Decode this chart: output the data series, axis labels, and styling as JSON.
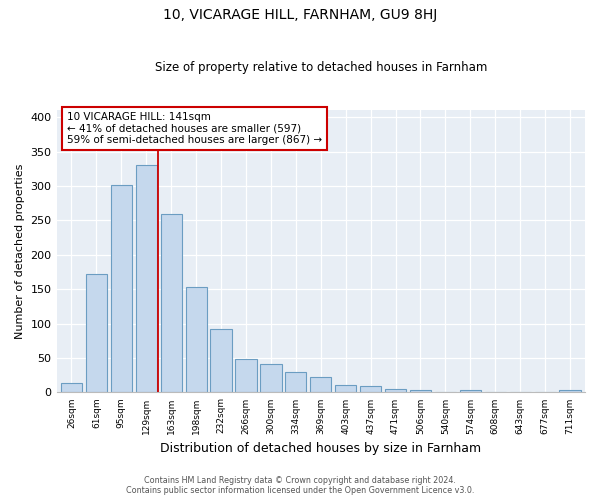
{
  "title": "10, VICARAGE HILL, FARNHAM, GU9 8HJ",
  "subtitle": "Size of property relative to detached houses in Farnham",
  "xlabel": "Distribution of detached houses by size in Farnham",
  "ylabel": "Number of detached properties",
  "bar_values": [
    13,
    172,
    302,
    330,
    259,
    153,
    92,
    49,
    42,
    29,
    22,
    11,
    10,
    5,
    4,
    1,
    4,
    1,
    0,
    0,
    4
  ],
  "tick_labels": [
    "26sqm",
    "61sqm",
    "95sqm",
    "129sqm",
    "163sqm",
    "198sqm",
    "232sqm",
    "266sqm",
    "300sqm",
    "334sqm",
    "369sqm",
    "403sqm",
    "437sqm",
    "471sqm",
    "506sqm",
    "540sqm",
    "574sqm",
    "608sqm",
    "643sqm",
    "677sqm",
    "711sqm"
  ],
  "bar_color": "#c5d8ed",
  "bar_edge_color": "#6b9dc2",
  "property_line_color": "#cc0000",
  "property_bin_index": 3,
  "annotation_text": "10 VICARAGE HILL: 141sqm\n← 41% of detached houses are smaller (597)\n59% of semi-detached houses are larger (867) →",
  "annotation_box_color": "white",
  "annotation_box_edge_color": "#cc0000",
  "ylim": [
    0,
    410
  ],
  "yticks": [
    0,
    50,
    100,
    150,
    200,
    250,
    300,
    350,
    400
  ],
  "footer_line1": "Contains HM Land Registry data © Crown copyright and database right 2024.",
  "footer_line2": "Contains public sector information licensed under the Open Government Licence v3.0.",
  "background_color": "#e8eef5",
  "n_bins": 21
}
